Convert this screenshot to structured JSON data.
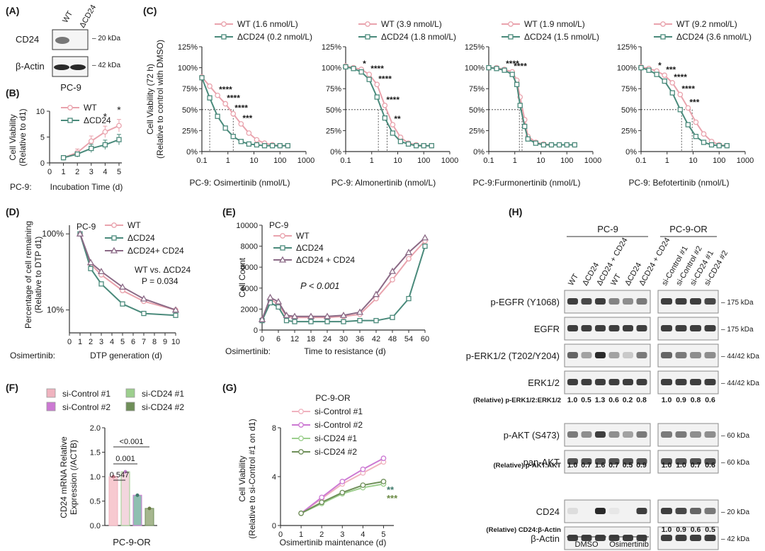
{
  "colors": {
    "wt": "#e9a3ad",
    "dcd24": "#4a8a7b",
    "rescue": "#8b6a86",
    "ctrl1": "#f0b3bf",
    "ctrl2": "#cc79d3",
    "si1": "#9dcf8e",
    "si2": "#6f8f59",
    "grey": "#9a9a9a",
    "band": "#2a2a2a",
    "frame": "#8a8a8a"
  },
  "panels": {
    "A": {
      "label": "(A)",
      "lanes": [
        "WT",
        "ΔCD24"
      ],
      "rows": [
        "CD24",
        "β-Actin"
      ],
      "markers": [
        "– 20 kDa",
        "– 42 kDa"
      ],
      "caption": "PC-9"
    },
    "B": {
      "label": "(B)",
      "ylabel": [
        "Cell Viability",
        "(Relative to d1)"
      ],
      "xprefix": "PC-9:",
      "xlabel": "Incubation Time (d)",
      "legend": [
        "WT",
        "ΔCD24"
      ],
      "sig": [
        "*",
        "*"
      ]
    },
    "C": {
      "label": "(C)",
      "ylabel": [
        "Cell Viability (72 h)",
        "(Relative to control with DMSO)"
      ],
      "xlabels": [
        "PC-9:  Osimertinib (nmol/L)",
        "PC-9:  Almonertinib (nmol/L)",
        "PC-9:Furmonertinib (nmol/L)",
        "PC-9:  Befotertinib (nmol/L)"
      ],
      "legends": [
        [
          "WT (1.6 nmol/L)",
          "ΔCD24 (0.2 nmol/L)"
        ],
        [
          "WT (3.9 nmol/L)",
          "ΔCD24 (1.8 nmol/L)"
        ],
        [
          "WT (1.9 nmol/L)",
          "ΔCD24 (1.5 nmol/L)"
        ],
        [
          "WT (9.2 nmol/L)",
          "ΔCD24 (3.6 nmol/L)"
        ]
      ],
      "sig": [
        [
          "****",
          "****",
          "****",
          "***"
        ],
        [
          "*",
          "****",
          "****",
          "****",
          "**"
        ],
        [
          "****",
          "****"
        ],
        [
          "*",
          "***",
          "****",
          "****",
          "***"
        ]
      ]
    },
    "D": {
      "label": "(D)",
      "title": "PC-9",
      "ylabel": [
        "Percentage of cell remaining",
        "(Relative to DTP d1)"
      ],
      "xprefix": "Osimertinib:",
      "xlabel": "DTP generation (d)",
      "legend": [
        "WT",
        "ΔCD24",
        "ΔCD24+ CD24"
      ],
      "stat_line1": "WT vs. ΔCD24",
      "stat_line2": "P = 0.034"
    },
    "E": {
      "label": "(E)",
      "title": "PC-9",
      "ylabel": "Cell Count",
      "xprefix": "Osimertinib:",
      "xlabel": "Time to resistance (d)",
      "legend": [
        "WT",
        "ΔCD24",
        "ΔCD24 + CD24"
      ],
      "stat": "P < 0.001"
    },
    "F": {
      "label": "(F)",
      "legend": [
        "si-Control #1",
        "si-CD24 #1",
        "si-Control #2",
        "si-CD24 #2"
      ],
      "ylabel": [
        "CD24 mRNA Relative",
        "Expression (/ACTB)"
      ],
      "pvalues": [
        "<0.001",
        "0.001",
        "0.547"
      ],
      "xlabel": "PC-9-OR"
    },
    "G": {
      "label": "(G)",
      "title": "PC-9-OR",
      "ylabel": [
        "Cell Viability",
        "(Relative to si-Control #1 on d1)"
      ],
      "xlabel": "Osimertinib maintenance (d)",
      "legend": [
        "si-Control #1",
        "si-Control #2",
        "si-CD24 #1",
        "si-CD24 #2"
      ],
      "sig": [
        "**",
        "***"
      ]
    },
    "H": {
      "label": "(H)",
      "groups": [
        "PC-9",
        "PC-9-OR"
      ],
      "lanes1": [
        "WT",
        "ΔCD24",
        "ΔCD24 + CD24",
        "WT",
        "ΔCD24",
        "ΔCD24 + CD24"
      ],
      "lanes2": [
        "si-Control #1",
        "si-Control #2",
        "si-CD24 #1",
        "si-CD24 #2"
      ],
      "rows": [
        "p-EGFR (Y1068)",
        "EGFR",
        "p-ERK1/2 (T202/Y204)",
        "ERK1/2",
        "p-AKT (S473)",
        "pan-AKT",
        "CD24",
        "β-Actin"
      ],
      "markers": [
        "– 175 kDa",
        "– 175 kDa",
        "– 44/42 kDa",
        "– 44/42 kDa",
        "– 60 kDa",
        "– 60 kDa",
        "– 20 kDa",
        "– 42 kDa"
      ],
      "quant": [
        {
          "label": "(Relative) p-ERK1/2:ERK1/2",
          "left": [
            "1.0",
            "0.5",
            "1.3",
            "0.6",
            "0.2",
            "0.8"
          ],
          "right": [
            "1.0",
            "0.9",
            "0.8",
            "0.6"
          ]
        },
        {
          "label": "(Relative) p-AKT:AKT",
          "left": [
            "1.0",
            "0.7",
            "1.6",
            "0.7",
            "0.5",
            "0.9"
          ],
          "right": [
            "1.0",
            "1.0",
            "0.7",
            "0.6"
          ]
        },
        {
          "label": "(Relative) CD24:β-Actin",
          "right": [
            "1.0",
            "0.9",
            "0.6",
            "0.5"
          ]
        }
      ],
      "treatments": [
        "DMSO",
        "Osimertinib"
      ]
    }
  },
  "chart_data": [
    {
      "panel": "B",
      "type": "line",
      "x": [
        1,
        2,
        3,
        4,
        5
      ],
      "xlim": [
        0,
        5
      ],
      "ylim": [
        0,
        10
      ],
      "yticks": [
        0,
        5,
        10
      ],
      "series": [
        {
          "name": "WT",
          "values": [
            1.0,
            2.0,
            4.2,
            6.0,
            7.2
          ],
          "err": [
            0.3,
            0.7,
            1.0,
            1.1,
            1.2
          ]
        },
        {
          "name": "ΔCD24",
          "values": [
            1.0,
            1.7,
            2.8,
            3.5,
            4.5
          ],
          "err": [
            0.2,
            0.6,
            0.8,
            0.9,
            1.0
          ]
        }
      ]
    },
    {
      "panel": "C1",
      "type": "line",
      "scale": "log",
      "x": [
        0.1,
        0.2,
        0.4,
        0.8,
        1.6,
        3.2,
        6.4,
        12.8,
        25.6,
        51.2,
        100,
        200
      ],
      "ylim": [
        0,
        125
      ],
      "series": [
        {
          "name": "WT",
          "values": [
            89,
            78,
            67,
            57,
            45,
            33,
            22,
            14,
            10,
            8,
            7,
            7
          ]
        },
        {
          "name": "ΔCD24",
          "values": [
            88,
            64,
            42,
            28,
            18,
            12,
            9,
            8,
            7,
            7,
            7,
            7
          ]
        }
      ]
    },
    {
      "panel": "C2",
      "type": "line",
      "scale": "log",
      "x": [
        0.1,
        0.2,
        0.4,
        0.8,
        1.6,
        3.2,
        6.4,
        12.8,
        25.6,
        51.2,
        100,
        200
      ],
      "ylim": [
        0,
        125
      ],
      "series": [
        {
          "name": "WT",
          "values": [
            102,
            100,
            98,
            92,
            80,
            55,
            32,
            17,
            10,
            8,
            7,
            7
          ]
        },
        {
          "name": "ΔCD24",
          "values": [
            101,
            99,
            95,
            86,
            65,
            40,
            22,
            12,
            9,
            7,
            7,
            7
          ]
        }
      ]
    },
    {
      "panel": "C3",
      "type": "line",
      "scale": "log",
      "x": [
        0.1,
        0.2,
        0.4,
        0.8,
        1.2,
        1.6,
        2.4,
        3.2,
        6.4,
        12.8,
        25.6,
        51.2,
        100,
        200
      ],
      "ylim": [
        0,
        125
      ],
      "series": [
        {
          "name": "WT",
          "values": [
            100,
            100,
            98,
            95,
            85,
            65,
            38,
            18,
            11,
            9,
            8,
            8,
            8,
            8
          ]
        },
        {
          "name": "ΔCD24",
          "values": [
            100,
            99,
            97,
            92,
            80,
            55,
            30,
            15,
            10,
            8,
            8,
            8,
            8,
            8
          ]
        }
      ]
    },
    {
      "panel": "C4",
      "type": "line",
      "scale": "log",
      "x": [
        0.1,
        0.2,
        0.4,
        0.8,
        1.6,
        3.2,
        6.4,
        12.8,
        25.6,
        51.2,
        100,
        200
      ],
      "ylim": [
        0,
        125
      ],
      "series": [
        {
          "name": "WT",
          "values": [
            101,
            99,
            96,
            91,
            82,
            68,
            52,
            35,
            21,
            12,
            8,
            7
          ]
        },
        {
          "name": "ΔCD24",
          "values": [
            100,
            97,
            92,
            84,
            70,
            50,
            32,
            18,
            11,
            8,
            7,
            7
          ]
        }
      ]
    },
    {
      "panel": "D",
      "type": "line",
      "scale": "log",
      "x": [
        1,
        2,
        3,
        5,
        7,
        10
      ],
      "ylim": [
        5,
        100
      ],
      "series": [
        {
          "name": "WT",
          "values": [
            100,
            40,
            29,
            18,
            13,
            10
          ]
        },
        {
          "name": "ΔCD24",
          "values": [
            100,
            35,
            22,
            12,
            9,
            8.5
          ]
        },
        {
          "name": "ΔCD24+ CD24",
          "values": [
            100,
            42,
            32,
            20,
            14,
            10
          ]
        }
      ]
    },
    {
      "panel": "E",
      "type": "line",
      "x": [
        0,
        3,
        6,
        9,
        12,
        18,
        24,
        30,
        36,
        42,
        48,
        54,
        60
      ],
      "ylim": [
        0,
        10000
      ],
      "series": [
        {
          "name": "WT",
          "values": [
            1000,
            2900,
            2500,
            1300,
            1200,
            1200,
            1200,
            1300,
            1500,
            3000,
            4800,
            6800,
            8500
          ]
        },
        {
          "name": "ΔCD24",
          "values": [
            900,
            2600,
            2200,
            900,
            800,
            800,
            800,
            800,
            900,
            900,
            1200,
            3000,
            8000
          ]
        },
        {
          "name": "ΔCD24 + CD24",
          "values": [
            1000,
            3100,
            2700,
            1400,
            1300,
            1300,
            1300,
            1400,
            1700,
            3400,
            5600,
            7400,
            8800
          ]
        }
      ]
    },
    {
      "panel": "F",
      "type": "bar",
      "categories": [
        "si-Control #1",
        "si-Control #2",
        "si-CD24 #1",
        "si-CD24 #2"
      ],
      "values": [
        1.0,
        1.1,
        0.62,
        0.35
      ],
      "ylim": [
        0,
        2.0
      ]
    },
    {
      "panel": "G",
      "type": "line",
      "x": [
        1,
        2,
        3,
        4,
        5
      ],
      "ylim": [
        0,
        8
      ],
      "series": [
        {
          "name": "si-Control #1",
          "values": [
            1.0,
            2.2,
            3.4,
            4.3,
            5.2
          ]
        },
        {
          "name": "si-Control #2",
          "values": [
            1.0,
            2.3,
            3.6,
            4.6,
            5.5
          ]
        },
        {
          "name": "si-CD24 #1",
          "values": [
            1.0,
            1.8,
            2.6,
            3.1,
            3.4
          ]
        },
        {
          "name": "si-CD24 #2",
          "values": [
            1.0,
            1.9,
            2.7,
            3.3,
            3.6
          ]
        }
      ]
    }
  ]
}
